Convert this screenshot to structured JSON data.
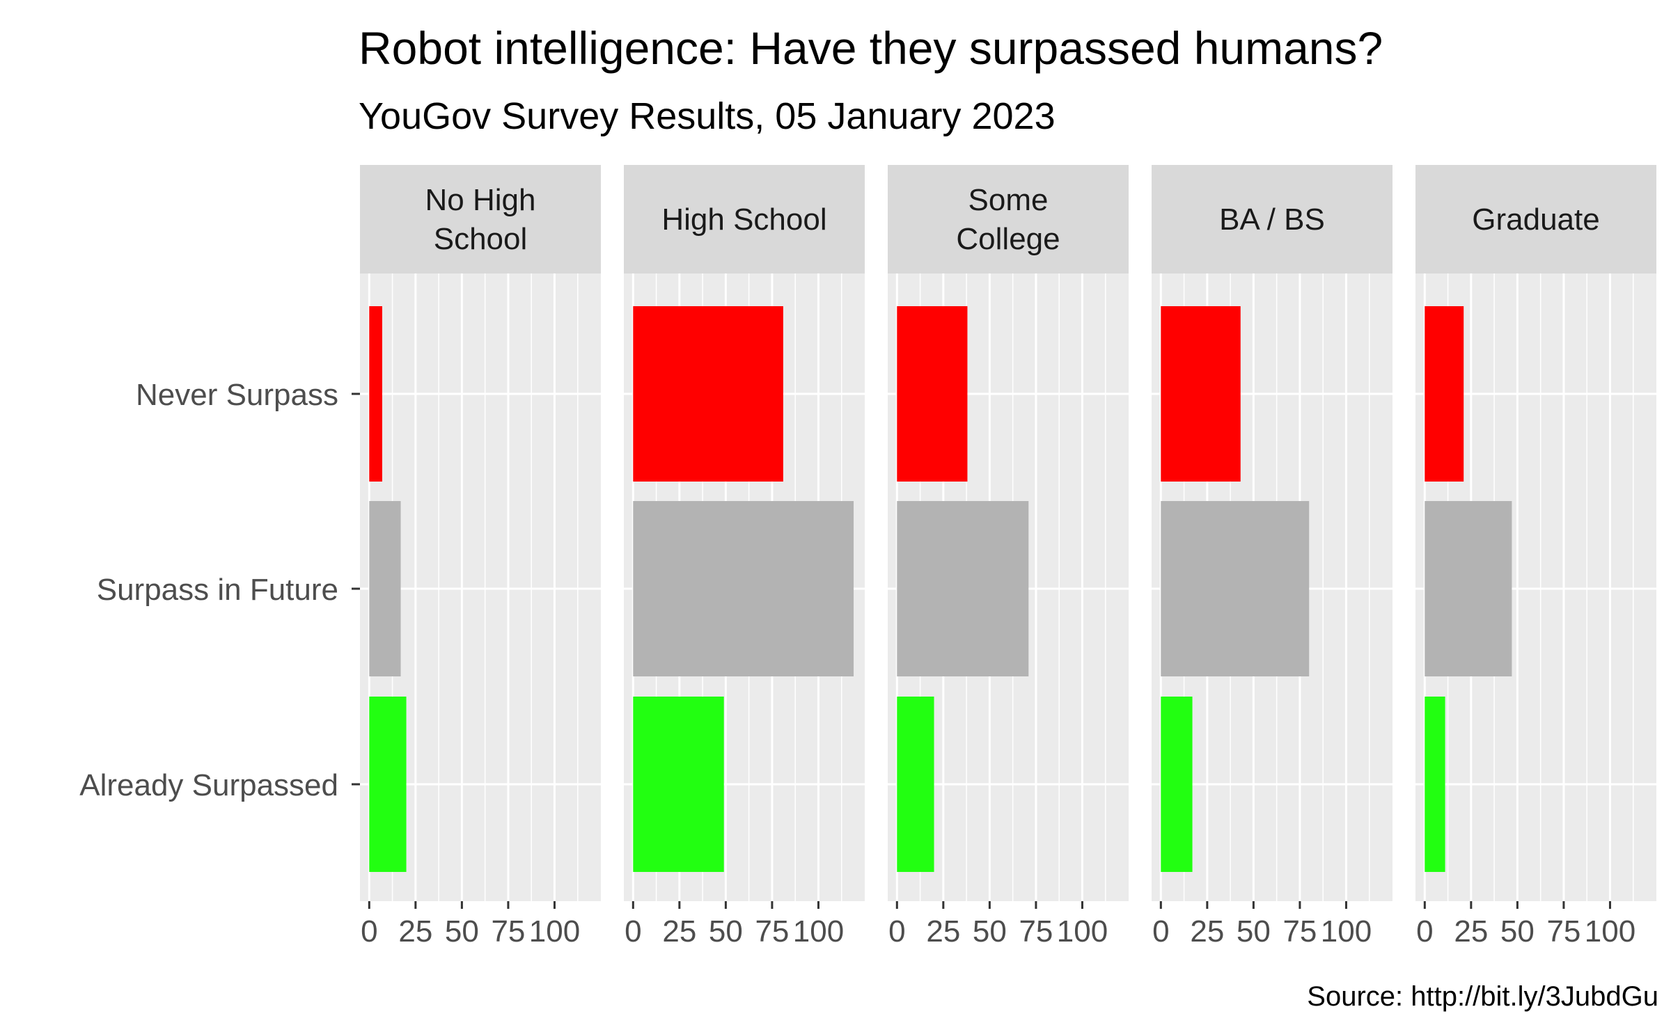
{
  "chart_data": {
    "type": "bar",
    "orientation": "horizontal",
    "title": "Robot intelligence: Have they surpassed humans?",
    "subtitle": "YouGov Survey Results, 05 January 2023",
    "caption": "Source: http://bit.ly/3JubdGu",
    "categories": [
      "Never Surpass",
      "Surpass in Future",
      "Already Surpassed"
    ],
    "category_colors": [
      "#ff0000",
      "#b3b3b3",
      "#22ff11"
    ],
    "xlim": [
      -5,
      125
    ],
    "x_ticks": [
      0,
      25,
      50,
      75,
      100
    ],
    "x_tick_labels": [
      "0",
      "25",
      "50",
      "75",
      "100"
    ],
    "grid": true,
    "facets": [
      {
        "label_lines": [
          "No High",
          "School"
        ],
        "values": [
          7,
          17,
          20
        ]
      },
      {
        "label_lines": [
          "High School"
        ],
        "values": [
          81,
          119,
          49
        ]
      },
      {
        "label_lines": [
          "Some",
          "College"
        ],
        "values": [
          38,
          71,
          20
        ]
      },
      {
        "label_lines": [
          "BA / BS"
        ],
        "values": [
          43,
          80,
          17
        ]
      },
      {
        "label_lines": [
          "Graduate"
        ],
        "values": [
          21,
          47,
          11
        ]
      }
    ]
  }
}
